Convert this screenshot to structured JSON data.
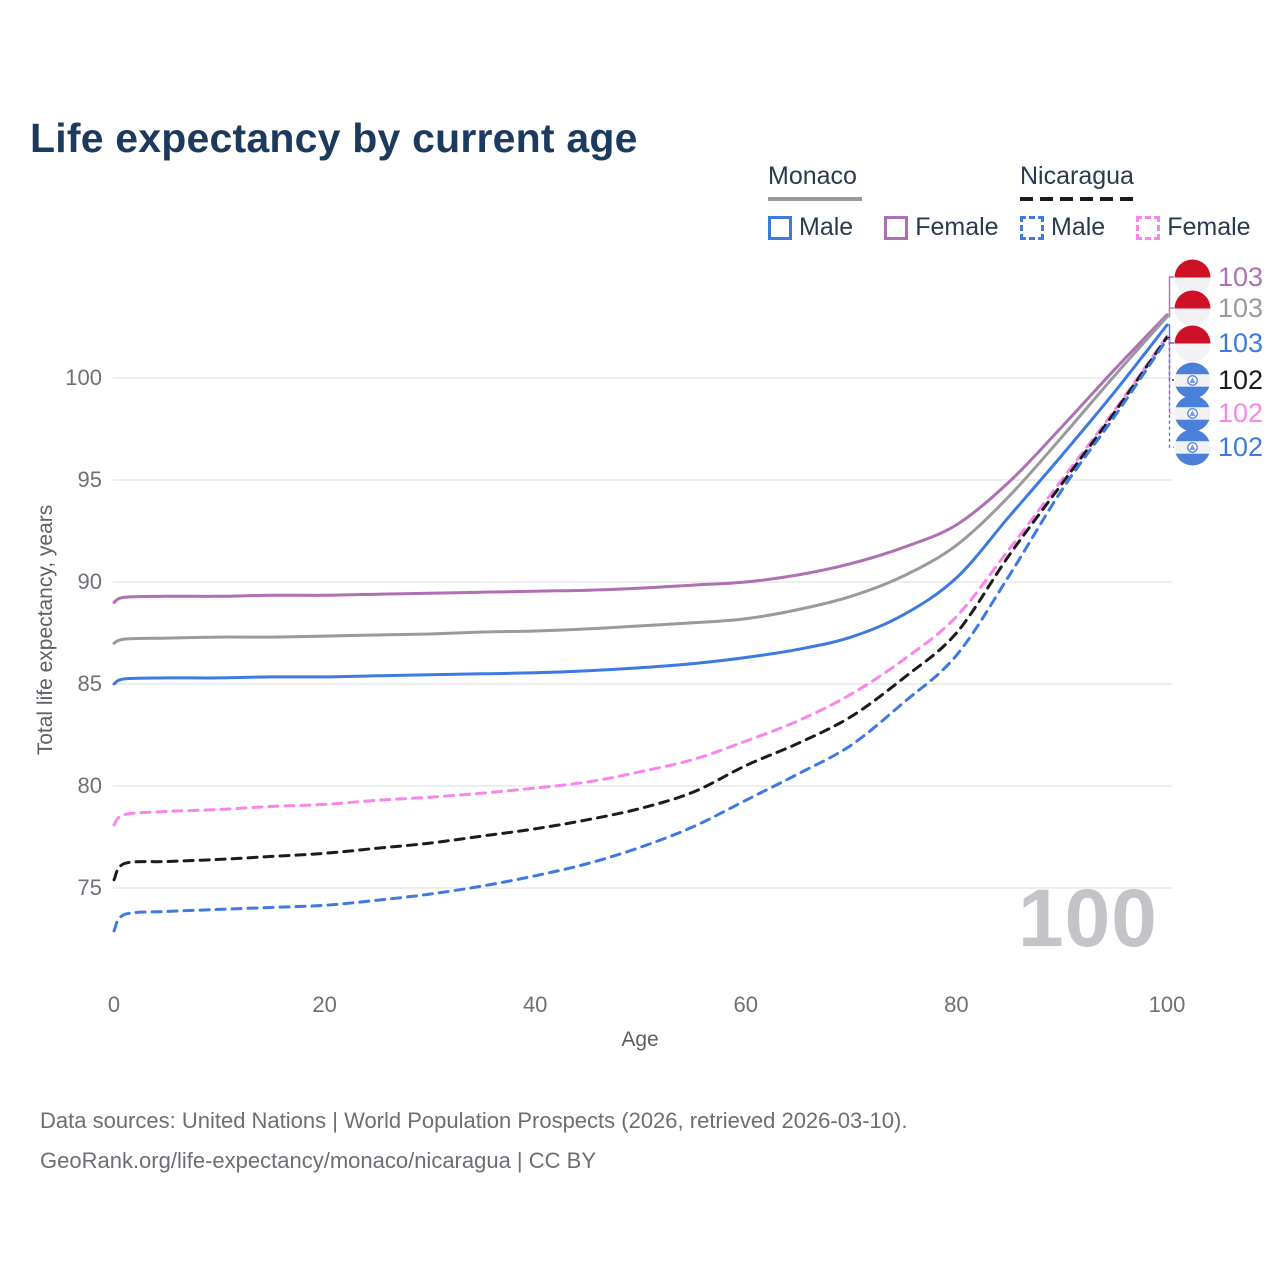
{
  "title": "Life expectancy by current age",
  "legend": {
    "groups": [
      {
        "label": "Monaco",
        "line_style": "solid",
        "items": [
          {
            "label": "Male",
            "color_key": "monaco_male",
            "style": "solid"
          },
          {
            "label": "Female",
            "color_key": "monaco_female",
            "style": "solid"
          }
        ]
      },
      {
        "label": "Nicaragua",
        "line_style": "dashed",
        "items": [
          {
            "label": "Male",
            "color_key": "nicaragua_male",
            "style": "dashed"
          },
          {
            "label": "Female",
            "color_key": "nicaragua_female",
            "style": "dashed"
          }
        ]
      }
    ]
  },
  "axes": {
    "x": {
      "label": "Age",
      "ticks": [
        "0",
        "20",
        "40",
        "60",
        "80",
        "100"
      ]
    },
    "y": {
      "label": "Total life expectancy, years",
      "ticks": [
        "75",
        "80",
        "85",
        "90",
        "95",
        "100"
      ]
    }
  },
  "watermark": "100",
  "end_labels": [
    {
      "value": "103",
      "flag": "monaco",
      "color_key": "monaco_female",
      "series_index": 0
    },
    {
      "value": "103",
      "flag": "monaco",
      "color_key": "monaco_total",
      "series_index": 1
    },
    {
      "value": "103",
      "flag": "monaco",
      "color_key": "monaco_male",
      "series_index": 2
    },
    {
      "value": "102",
      "flag": "nicaragua",
      "color_key": "nicaragua_total",
      "series_index": 4
    },
    {
      "value": "102",
      "flag": "nicaragua",
      "color_key": "nicaragua_female",
      "series_index": 3
    },
    {
      "value": "102",
      "flag": "nicaragua",
      "color_key": "nicaragua_male",
      "series_index": 5
    }
  ],
  "footer": {
    "line1": "Data sources: United Nations | World Population Prospects (2026, retrieved 2026-03-10).",
    "line2": "GeoRank.org/life-expectancy/monaco/nicaragua | CC BY"
  },
  "colors": {
    "monaco_male": "#3D79E1",
    "monaco_female": "#AE70B2",
    "monaco_total": "#9A9A9E",
    "nicaragua_male": "#3D79E1",
    "nicaragua_female": "#F985EA",
    "nicaragua_total": "#1B1B1B",
    "grid": "#E9E9EC",
    "title_text": "#1C3A5E",
    "legend_text": "#2A3A4E",
    "tick_text": "#6F7076",
    "axis_title_text": "#5D6066",
    "footer_text": "#6B6E73",
    "watermark_text": "#C4C4C8",
    "flag_monaco_red": "#CE1126",
    "flag_white": "#F1F1F4",
    "flag_nicaragua_blue": "#4B80DA"
  },
  "chart_data": {
    "type": "line",
    "title": "Life expectancy by current age",
    "xlabel": "Age",
    "ylabel": "Total life expectancy, years",
    "xlim": [
      0,
      100
    ],
    "ylim": [
      72,
      104
    ],
    "grid": "horizontal",
    "legend_position": "top-right",
    "x": [
      0,
      1,
      5,
      10,
      15,
      20,
      25,
      30,
      35,
      40,
      45,
      50,
      55,
      60,
      65,
      70,
      75,
      80,
      85,
      90,
      95,
      100
    ],
    "series": [
      {
        "name": "Monaco Female",
        "country": "Monaco",
        "sex": "Female",
        "color_key": "monaco_female",
        "dash": false,
        "end_label": "103",
        "values": [
          89.0,
          89.25,
          89.3,
          89.3,
          89.35,
          89.35,
          89.4,
          89.45,
          89.5,
          89.55,
          89.6,
          89.7,
          89.85,
          90.0,
          90.35,
          90.9,
          91.7,
          92.8,
          94.9,
          97.6,
          100.4,
          103.1
        ]
      },
      {
        "name": "Monaco Both sexes",
        "country": "Monaco",
        "sex": "Both",
        "color_key": "monaco_total",
        "dash": false,
        "end_label": "103",
        "values": [
          87.0,
          87.2,
          87.25,
          87.3,
          87.3,
          87.35,
          87.4,
          87.45,
          87.55,
          87.6,
          87.7,
          87.85,
          88.0,
          88.2,
          88.65,
          89.3,
          90.3,
          91.8,
          94.2,
          97.1,
          100.1,
          103.0
        ]
      },
      {
        "name": "Monaco Male",
        "country": "Monaco",
        "sex": "Male",
        "color_key": "monaco_male",
        "dash": false,
        "end_label": "103",
        "values": [
          85.0,
          85.25,
          85.3,
          85.3,
          85.35,
          85.35,
          85.4,
          85.45,
          85.5,
          85.55,
          85.65,
          85.8,
          86.0,
          86.3,
          86.7,
          87.3,
          88.4,
          90.2,
          93.2,
          96.2,
          99.3,
          102.6
        ]
      },
      {
        "name": "Nicaragua Female",
        "country": "Nicaragua",
        "sex": "Female",
        "color_key": "nicaragua_female",
        "dash": true,
        "end_label": "102",
        "values": [
          78.1,
          78.6,
          78.75,
          78.85,
          79.0,
          79.1,
          79.3,
          79.45,
          79.65,
          79.9,
          80.2,
          80.7,
          81.3,
          82.2,
          83.2,
          84.5,
          86.2,
          88.3,
          91.6,
          95.0,
          98.4,
          102.05
        ]
      },
      {
        "name": "Nicaragua Both sexes",
        "country": "Nicaragua",
        "sex": "Both",
        "color_key": "nicaragua_total",
        "dash": true,
        "end_label": "102",
        "values": [
          75.4,
          76.2,
          76.3,
          76.4,
          76.55,
          76.7,
          76.95,
          77.2,
          77.55,
          77.9,
          78.35,
          78.9,
          79.7,
          81.0,
          82.1,
          83.4,
          85.3,
          87.5,
          91.3,
          94.8,
          98.3,
          102.0
        ]
      },
      {
        "name": "Nicaragua Male",
        "country": "Nicaragua",
        "sex": "Male",
        "color_key": "nicaragua_male",
        "dash": true,
        "end_label": "102",
        "values": [
          72.9,
          73.7,
          73.85,
          73.95,
          74.05,
          74.15,
          74.4,
          74.7,
          75.1,
          75.6,
          76.2,
          77.0,
          78.0,
          79.3,
          80.6,
          82.0,
          84.1,
          86.4,
          90.3,
          94.5,
          98.1,
          101.9
        ]
      }
    ]
  }
}
